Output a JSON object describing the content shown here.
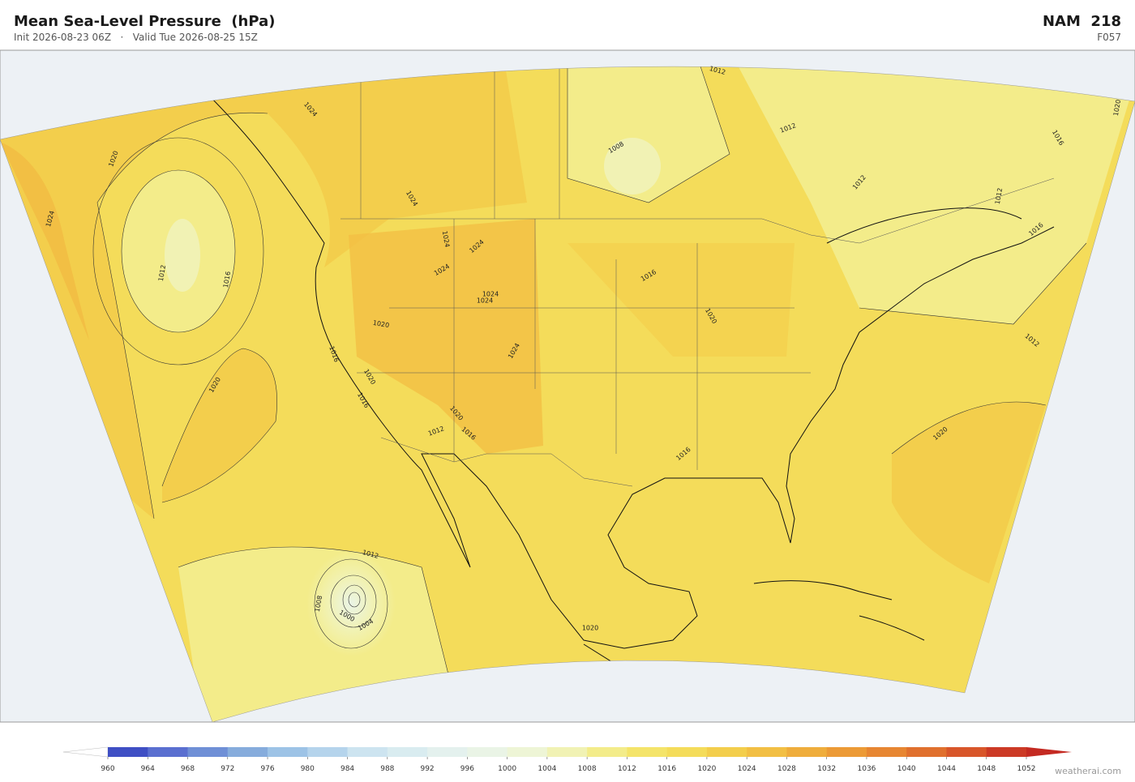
{
  "header": {
    "title": "Mean Sea-Level Pressure  (hPa)",
    "init": "Init 2026-08-23 06Z",
    "separator": "·",
    "valid": "Valid Tue 2026-08-25 15Z",
    "model": "NAM  218",
    "forecast_hour": "F057"
  },
  "contour_labels": [
    1012,
    1024,
    1020,
    1024,
    1012,
    1016,
    1008,
    1012,
    1012,
    1012,
    1016,
    1020,
    1016,
    1024,
    1024,
    1024,
    1024,
    1024,
    1024,
    1020,
    1024,
    1016,
    1020,
    1020,
    1020,
    1016,
    1020,
    1012,
    1016,
    1016,
    1016,
    1020,
    1012,
    1012,
    1008,
    1000,
    1004,
    1020
  ],
  "colorbar": {
    "ticks": [
      960,
      964,
      968,
      972,
      976,
      980,
      984,
      988,
      992,
      996,
      1000,
      1004,
      1008,
      1012,
      1016,
      1020,
      1024,
      1028,
      1032,
      1036,
      1040,
      1044,
      1048,
      1052
    ],
    "colors": [
      "#3f4fc4",
      "#5a6fd0",
      "#6f8fd6",
      "#86acdc",
      "#9dc3e6",
      "#b5d4ec",
      "#cde4f0",
      "#d9ecf0",
      "#e4f1ee",
      "#eaf4e6",
      "#eef5d6",
      "#f1f2b4",
      "#f3ec8a",
      "#f4e46a",
      "#f4dc5a",
      "#f3ce4c",
      "#f2bf44",
      "#efad3c",
      "#ec9a36",
      "#e78632",
      "#e0702e",
      "#d8562a",
      "#cc3a26"
    ],
    "over_color": "#c42a22"
  },
  "credit": "weatherai.com"
}
